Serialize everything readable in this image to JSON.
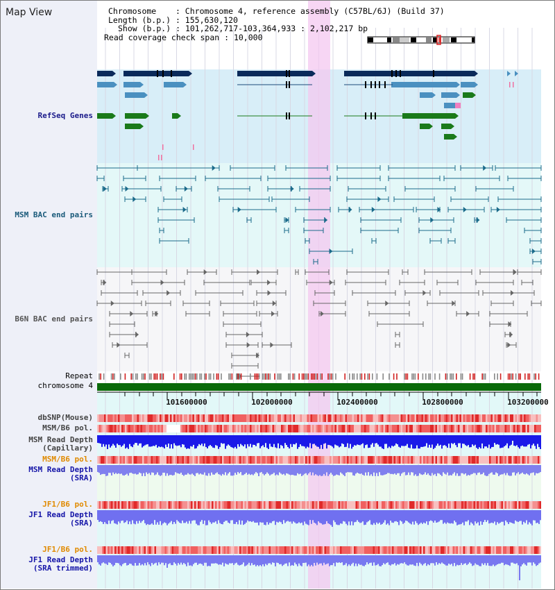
{
  "page": {
    "title": "Map View"
  },
  "header": {
    "chromosome_label": "Chromosome",
    "chromosome_value": "Chromosome 4, reference assembly (C57BL/6J) (Build 37)",
    "length_label": "Length (b.p.)",
    "length_value": "155,630,120",
    "show_label": "Show (b.p.)",
    "show_value": "101,262,717-103,364,933 : 2,102,217 bp",
    "coverage_label": "Read coverage check span",
    "coverage_value": "10,000"
  },
  "tracks": {
    "refseq": "RefSeq Genes",
    "msm_bac": "MSM BAC end pairs",
    "b6n_bac": "B6N BAC end pairs",
    "repeat": "Repeat",
    "chromosome": "chromosome 4",
    "dbsnp": "dbSNP(Mouse)",
    "msm_b6_pol_1": "MSM/B6 pol.",
    "msm_depth_cap": "MSM Read Depth\n(Capillary)",
    "msm_b6_pol_2": "MSM/B6 pol.",
    "msm_depth_sra": "MSM Read Depth\n(SRA)",
    "jf1_b6_pol_1": "JF1/B6 pol.",
    "jf1_depth_sra": "JF1 Read Depth\n(SRA)",
    "jf1_b6_pol_2": "JF1/B6 pol.",
    "jf1_depth_trim": "JF1 Read Depth\n(SRA trimmed)"
  },
  "axis": {
    "ticks": [
      "101600000",
      "102000000",
      "102400000",
      "102800000",
      "103200000"
    ]
  },
  "colors": {
    "refseq_bg": "#d8eef8",
    "bac_bg": "#e4f8f8",
    "highlight": "#f4c8f0",
    "navy_gene": "#0a2a5a",
    "blue_gene": "#4a90c0",
    "green_gene": "#1a7a1a",
    "chromosome_bar": "#0a6a0a",
    "depth_blue": "#1a1ae8",
    "depth_light": "#8080ee"
  }
}
